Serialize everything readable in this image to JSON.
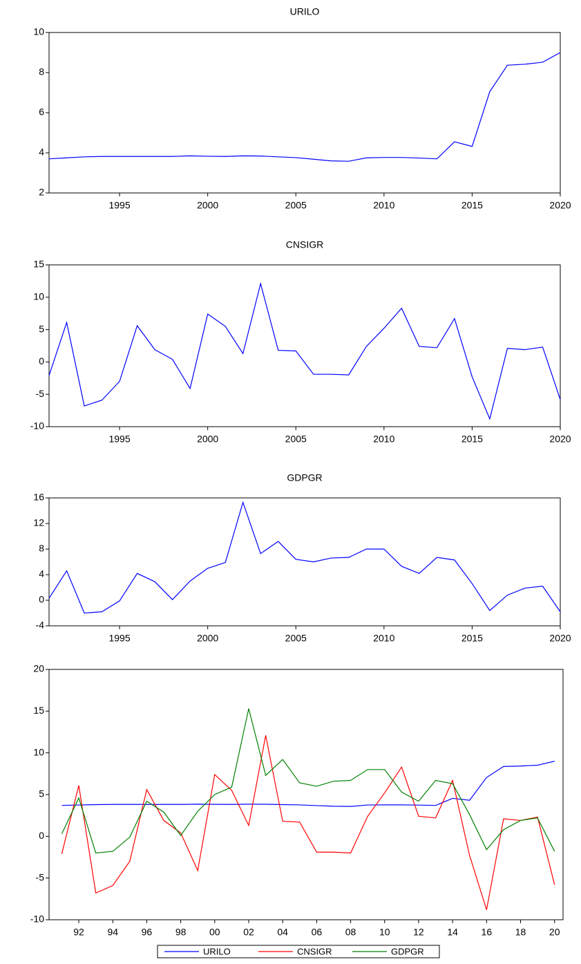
{
  "chart_data": [
    {
      "type": "line",
      "title": "URILO",
      "color": "#0000ff",
      "x": [
        1991,
        1992,
        1993,
        1994,
        1995,
        1996,
        1997,
        1998,
        1999,
        2000,
        2001,
        2002,
        2003,
        2004,
        2005,
        2006,
        2007,
        2008,
        2009,
        2010,
        2011,
        2012,
        2013,
        2014,
        2015,
        2016,
        2017,
        2018,
        2019,
        2020
      ],
      "values": [
        3.7,
        3.75,
        3.8,
        3.82,
        3.82,
        3.82,
        3.82,
        3.82,
        3.85,
        3.83,
        3.82,
        3.85,
        3.84,
        3.8,
        3.76,
        3.68,
        3.6,
        3.58,
        3.75,
        3.77,
        3.77,
        3.74,
        3.7,
        4.55,
        4.32,
        7.05,
        8.37,
        8.42,
        8.52,
        9.0
      ],
      "xlim": [
        1991,
        2020
      ],
      "xticks": [
        1995,
        2000,
        2005,
        2010,
        2015,
        2020
      ],
      "ylim": [
        2,
        10
      ],
      "yticks": [
        2,
        4,
        6,
        8,
        10
      ]
    },
    {
      "type": "line",
      "title": "CNSIGR",
      "color": "#0000ff",
      "x": [
        1991,
        1992,
        1993,
        1994,
        1995,
        1996,
        1997,
        1998,
        1999,
        2000,
        2001,
        2002,
        2003,
        2004,
        2005,
        2006,
        2007,
        2008,
        2009,
        2010,
        2011,
        2012,
        2013,
        2014,
        2015,
        2016,
        2017,
        2018,
        2019,
        2020
      ],
      "values": [
        -2.1,
        6.1,
        -6.8,
        -5.9,
        -3.0,
        5.6,
        1.9,
        0.4,
        -4.1,
        7.4,
        5.5,
        1.3,
        12.1,
        1.8,
        1.7,
        -1.9,
        -1.9,
        -2.0,
        2.4,
        5.2,
        8.3,
        2.4,
        2.2,
        6.7,
        -2.3,
        -8.8,
        2.1,
        1.9,
        2.3,
        -5.8
      ],
      "xlim": [
        1991,
        2020
      ],
      "xticks": [
        1995,
        2000,
        2005,
        2010,
        2015,
        2020
      ],
      "ylim": [
        -10,
        15
      ],
      "yticks": [
        -10,
        -5,
        0,
        5,
        10,
        15
      ]
    },
    {
      "type": "line",
      "title": "GDPGR",
      "color": "#0000ff",
      "x": [
        1991,
        1992,
        1993,
        1994,
        1995,
        1996,
        1997,
        1998,
        1999,
        2000,
        2001,
        2002,
        2003,
        2004,
        2005,
        2006,
        2007,
        2008,
        2009,
        2010,
        2011,
        2012,
        2013,
        2014,
        2015,
        2016,
        2017,
        2018,
        2019,
        2020
      ],
      "values": [
        0.3,
        4.6,
        -2.0,
        -1.8,
        -0.1,
        4.2,
        2.9,
        0.1,
        3.0,
        5.0,
        5.9,
        15.3,
        7.3,
        9.2,
        6.4,
        6.0,
        6.6,
        6.7,
        8.0,
        8.0,
        5.3,
        4.2,
        6.7,
        6.3,
        2.6,
        -1.6,
        0.8,
        1.9,
        2.2,
        -1.8
      ],
      "xlim": [
        1991,
        2020
      ],
      "xticks": [
        1995,
        2000,
        2005,
        2010,
        2015,
        2020
      ],
      "ylim": [
        -4,
        16
      ],
      "yticks": [
        -4,
        0,
        4,
        8,
        12,
        16
      ]
    },
    {
      "type": "line",
      "legend": "bottom",
      "x": [
        1991,
        1992,
        1993,
        1994,
        1995,
        1996,
        1997,
        1998,
        1999,
        2000,
        2001,
        2002,
        2003,
        2004,
        2005,
        2006,
        2007,
        2008,
        2009,
        2010,
        2011,
        2012,
        2013,
        2014,
        2015,
        2016,
        2017,
        2018,
        2019,
        2020
      ],
      "series": [
        {
          "name": "URILO",
          "color": "#0000ff",
          "values": [
            3.7,
            3.75,
            3.8,
            3.82,
            3.82,
            3.82,
            3.82,
            3.82,
            3.85,
            3.83,
            3.82,
            3.85,
            3.84,
            3.8,
            3.76,
            3.68,
            3.6,
            3.58,
            3.75,
            3.77,
            3.77,
            3.74,
            3.7,
            4.55,
            4.32,
            7.05,
            8.37,
            8.42,
            8.52,
            9.0
          ]
        },
        {
          "name": "CNSIGR",
          "color": "#ff0000",
          "values": [
            -2.1,
            6.1,
            -6.8,
            -5.9,
            -3.0,
            5.6,
            1.9,
            0.4,
            -4.1,
            7.4,
            5.5,
            1.3,
            12.1,
            1.8,
            1.7,
            -1.9,
            -1.9,
            -2.0,
            2.4,
            5.2,
            8.3,
            2.4,
            2.2,
            6.7,
            -2.3,
            -8.8,
            2.1,
            1.9,
            2.3,
            -5.8
          ]
        },
        {
          "name": "GDPGR",
          "color": "#008000",
          "values": [
            0.3,
            4.6,
            -2.0,
            -1.8,
            -0.1,
            4.2,
            2.9,
            0.1,
            3.0,
            5.0,
            5.9,
            15.3,
            7.3,
            9.2,
            6.4,
            6.0,
            6.6,
            6.7,
            8.0,
            8.0,
            5.3,
            4.2,
            6.7,
            6.3,
            2.6,
            -1.6,
            0.8,
            1.9,
            2.2,
            -1.8
          ]
        }
      ],
      "xlim": [
        1990.25,
        2020.5
      ],
      "xticks": [
        {
          "value": 1992,
          "label": "92"
        },
        {
          "value": 1994,
          "label": "94"
        },
        {
          "value": 1996,
          "label": "96"
        },
        {
          "value": 1998,
          "label": "98"
        },
        {
          "value": 2000,
          "label": "00"
        },
        {
          "value": 2002,
          "label": "02"
        },
        {
          "value": 2004,
          "label": "04"
        },
        {
          "value": 2006,
          "label": "06"
        },
        {
          "value": 2008,
          "label": "08"
        },
        {
          "value": 2010,
          "label": "10"
        },
        {
          "value": 2012,
          "label": "12"
        },
        {
          "value": 2014,
          "label": "14"
        },
        {
          "value": 2016,
          "label": "16"
        },
        {
          "value": 2018,
          "label": "18"
        },
        {
          "value": 2020,
          "label": "20"
        }
      ],
      "ylim": [
        -10,
        20
      ],
      "yticks": [
        -10,
        -5,
        0,
        5,
        10,
        15,
        20
      ]
    }
  ]
}
